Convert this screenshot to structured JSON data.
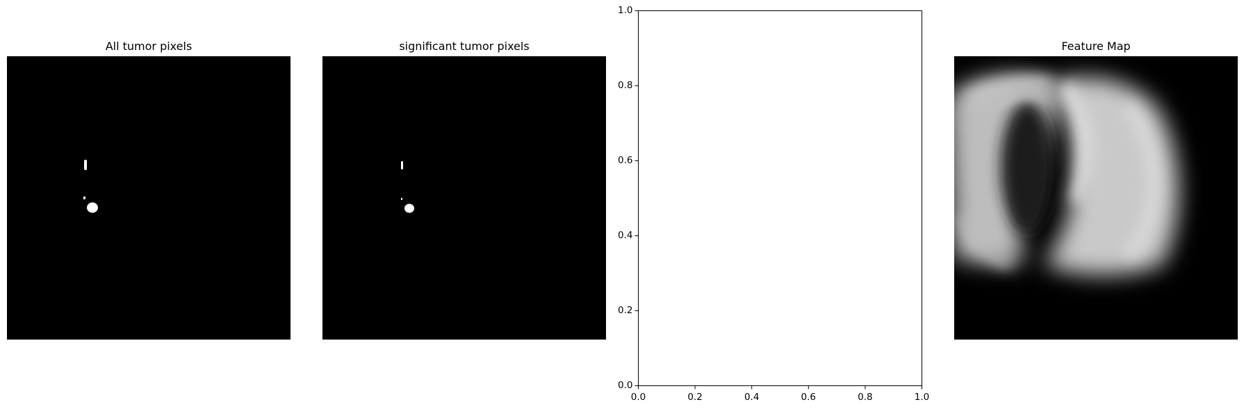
{
  "panels": [
    {
      "title": "All tumor pixels"
    },
    {
      "title": "significant tumor pixels"
    },
    {
      "title": ""
    },
    {
      "title": "Feature Map"
    }
  ],
  "chart_data": [
    {
      "type": "image",
      "title": "All tumor pixels",
      "colormap": "gray",
      "axes_visible": false
    },
    {
      "type": "image",
      "title": "significant tumor pixels",
      "colormap": "gray",
      "axes_visible": false
    },
    {
      "type": "scatter",
      "title": "",
      "xlabel": "",
      "ylabel": "",
      "xlim": [
        0.0,
        1.0
      ],
      "ylim": [
        0.0,
        1.0
      ],
      "xticks": [
        "0.0",
        "0.2",
        "0.4",
        "0.6",
        "0.8",
        "1.0"
      ],
      "yticks": [
        "0.0",
        "0.2",
        "0.4",
        "0.6",
        "0.8",
        "1.0"
      ],
      "series": [],
      "grid": false
    },
    {
      "type": "image",
      "title": "Feature Map",
      "colormap": "gray",
      "axes_visible": false
    }
  ]
}
